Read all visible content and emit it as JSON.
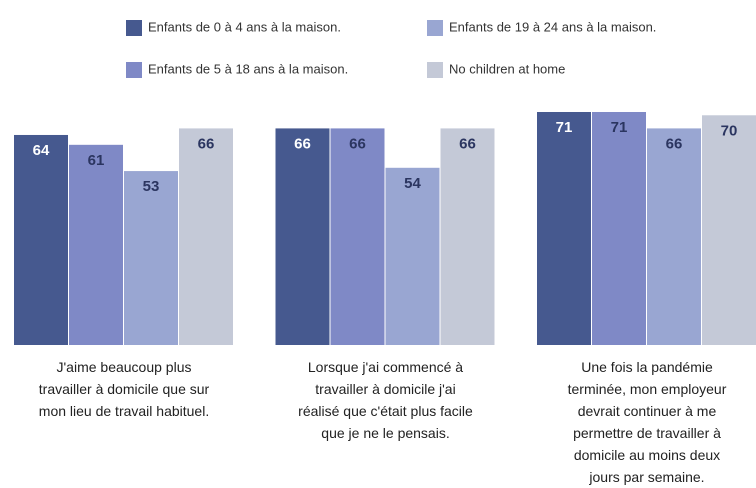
{
  "chart_data": {
    "type": "bar",
    "categories": [
      "J'aime beaucoup plus travailler à domicile que sur mon lieu de travail habituel.",
      "Lorsque j'ai commencé à travailler à domicile j'ai réalisé que c'était plus facile que je ne le pensais.",
      "Une fois la pandémie terminée, mon employeur devrait continuer à me permettre de travailler à domicile au moins deux jours par semaine."
    ],
    "series": [
      {
        "name": "Enfants de 0 à 4 ans à la maison.",
        "color": "#46598f",
        "values": [
          64,
          66,
          71
        ]
      },
      {
        "name": "Enfants de 5 à 18 ans à la maison.",
        "color": "#7f89c6",
        "values": [
          61,
          66,
          71
        ]
      },
      {
        "name": "Enfants de 19 à 24 ans à la maison.",
        "color": "#99a6d2",
        "values": [
          53,
          54,
          66
        ]
      },
      {
        "name": "No children at home",
        "color": "#c4c9d7",
        "values": [
          66,
          66,
          70
        ]
      }
    ]
  }
}
